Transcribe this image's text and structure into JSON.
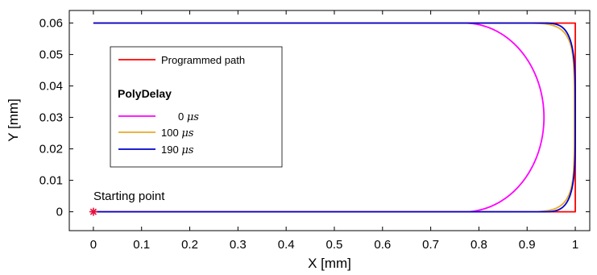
{
  "chart_data": {
    "type": "line",
    "xlabel": "X [mm]",
    "ylabel": "Y [mm]",
    "xlim": [
      -0.05,
      1.03
    ],
    "ylim": [
      -0.006,
      0.064
    ],
    "xticks": [
      0,
      0.1,
      0.2,
      0.3,
      0.4,
      0.5,
      0.6,
      0.7,
      0.8,
      0.9,
      1
    ],
    "xtick_labels": [
      "0",
      "0.1",
      "0.2",
      "0.3",
      "0.4",
      "0.5",
      "0.6",
      "0.7",
      "0.8",
      "0.9",
      "1"
    ],
    "yticks": [
      0,
      0.01,
      0.02,
      0.03,
      0.04,
      0.05,
      0.06
    ],
    "ytick_labels": [
      "0",
      "0.01",
      "0.02",
      "0.03",
      "0.04",
      "0.05",
      "0.06"
    ],
    "grid": false,
    "legend_position": "left",
    "legend_title": "PolyDelay",
    "annotation": {
      "text": "Starting point",
      "marker": "*",
      "marker_color": "#e8103a",
      "point": [
        0,
        0
      ]
    },
    "series": [
      {
        "name": "Programmed path",
        "color": "#ff0000",
        "points": [
          [
            0,
            0
          ],
          [
            1,
            0
          ],
          [
            1,
            0.06
          ],
          [
            0,
            0.06
          ]
        ]
      },
      {
        "name": "0 μs",
        "legend_value": "0",
        "legend_unit": "μs",
        "color": "#ff00ff",
        "corner_start_x": 0.77,
        "apex_x": 0.935
      },
      {
        "name": "100 μs",
        "legend_value": "100",
        "legend_unit": "μs",
        "color": "#e8a92b",
        "corner_start_x": 0.87,
        "apex_x": 0.998
      },
      {
        "name": "190 μs",
        "legend_value": "190",
        "legend_unit": "μs",
        "color": "#0000cc",
        "corner_start_x": 0.925,
        "apex_x": 1.0
      }
    ]
  }
}
